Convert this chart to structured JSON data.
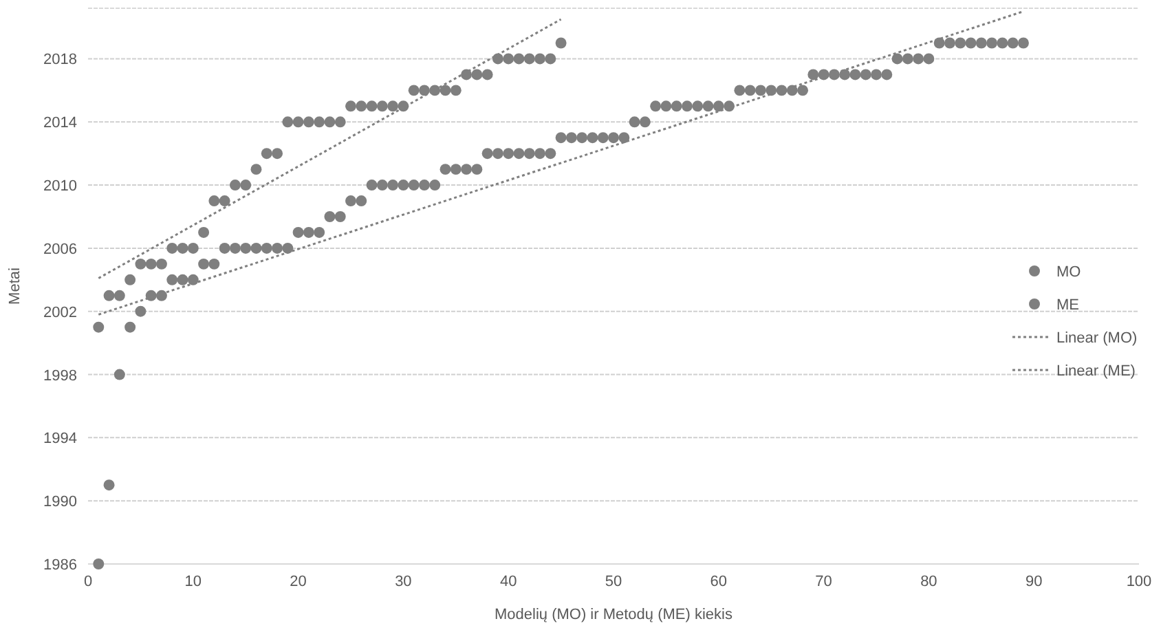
{
  "chart_data": {
    "type": "scatter",
    "xlabel": "Modelių (MO) ir Metodų (ME) kiekis",
    "ylabel": "Metai",
    "xlim": [
      0,
      100
    ],
    "xticks": [
      0,
      10,
      20,
      30,
      40,
      50,
      60,
      70,
      80,
      90,
      100
    ],
    "ylim": [
      1986,
      2021.2
    ],
    "yticks": [
      1986,
      1990,
      1994,
      1998,
      2002,
      2006,
      2010,
      2014,
      2018
    ],
    "grid": "y",
    "legend": "right",
    "marker": "circle",
    "series": [
      {
        "name": "MO",
        "color": "#7f7f7f",
        "x": [
          1,
          2,
          3,
          4,
          5,
          6,
          7,
          8,
          9,
          10,
          11,
          12,
          13,
          14,
          15,
          16,
          17,
          18,
          19,
          20,
          21,
          22,
          23,
          24,
          25,
          26,
          27,
          28,
          29,
          30,
          31,
          32,
          33,
          34,
          35,
          36,
          37,
          38,
          39,
          40,
          41,
          42,
          43,
          44,
          45
        ],
        "values": [
          2001,
          2003,
          2003,
          2004,
          2005,
          2005,
          2005,
          2006,
          2006,
          2006,
          2007,
          2009,
          2009,
          2010,
          2010,
          2011,
          2012,
          2012,
          2014,
          2014,
          2014,
          2014,
          2014,
          2014,
          2015,
          2015,
          2015,
          2015,
          2015,
          2015,
          2016,
          2016,
          2016,
          2016,
          2016,
          2017,
          2017,
          2017,
          2018,
          2018,
          2018,
          2018,
          2018,
          2018,
          2019
        ]
      },
      {
        "name": "ME",
        "color": "#7f7f7f",
        "x": [
          1,
          2,
          3,
          4,
          5,
          6,
          7,
          8,
          9,
          10,
          11,
          12,
          13,
          14,
          15,
          16,
          17,
          18,
          19,
          20,
          21,
          22,
          23,
          24,
          25,
          26,
          27,
          28,
          29,
          30,
          31,
          32,
          33,
          34,
          35,
          36,
          37,
          38,
          39,
          40,
          41,
          42,
          43,
          44,
          45,
          46,
          47,
          48,
          49,
          50,
          51,
          52,
          53,
          54,
          55,
          56,
          57,
          58,
          59,
          60,
          61,
          62,
          63,
          64,
          65,
          66,
          67,
          68,
          69,
          70,
          71,
          72,
          73,
          74,
          75,
          76,
          77,
          78,
          79,
          80,
          81,
          82,
          83,
          84,
          85,
          86,
          87,
          88,
          89
        ],
        "values": [
          1986,
          1991,
          1998,
          2001,
          2002,
          2003,
          2003,
          2004,
          2004,
          2004,
          2005,
          2005,
          2006,
          2006,
          2006,
          2006,
          2006,
          2006,
          2006,
          2007,
          2007,
          2007,
          2008,
          2008,
          2009,
          2009,
          2010,
          2010,
          2010,
          2010,
          2010,
          2010,
          2010,
          2011,
          2011,
          2011,
          2011,
          2012,
          2012,
          2012,
          2012,
          2012,
          2012,
          2012,
          2013,
          2013,
          2013,
          2013,
          2013,
          2013,
          2013,
          2014,
          2014,
          2015,
          2015,
          2015,
          2015,
          2015,
          2015,
          2015,
          2015,
          2016,
          2016,
          2016,
          2016,
          2016,
          2016,
          2016,
          2017,
          2017,
          2017,
          2017,
          2017,
          2017,
          2017,
          2017,
          2018,
          2018,
          2018,
          2018,
          2019,
          2019,
          2019,
          2019,
          2019,
          2019,
          2019,
          2019,
          2019
        ]
      },
      {
        "name": "Linear (MO)",
        "type": "line",
        "line_style": "dotted",
        "marker": "none",
        "color": "#808080",
        "x": [
          1,
          45
        ],
        "values": [
          2004.1,
          2020.5
        ]
      },
      {
        "name": "Linear (ME)",
        "type": "line",
        "line_style": "dotted",
        "marker": "none",
        "color": "#808080",
        "x": [
          1,
          89
        ],
        "values": [
          2001.8,
          2021
        ]
      }
    ]
  }
}
